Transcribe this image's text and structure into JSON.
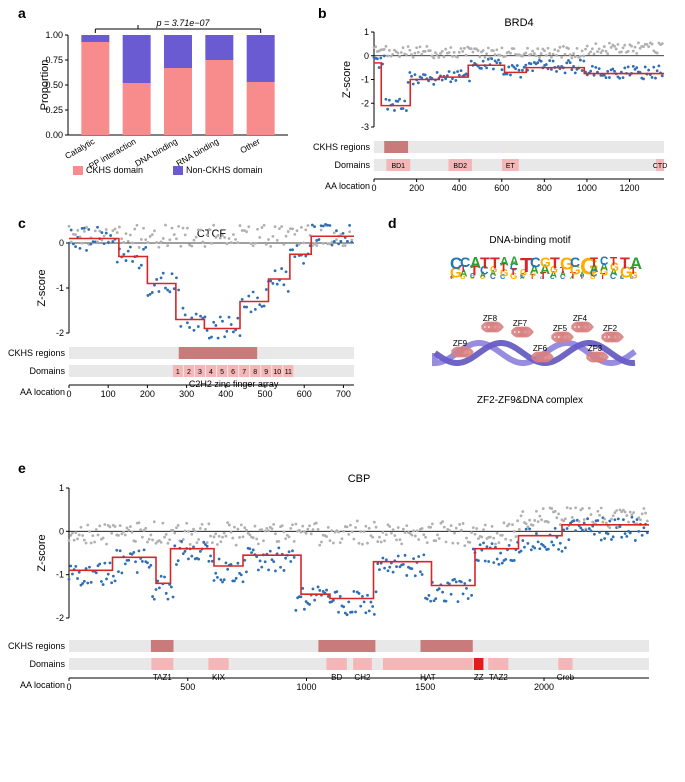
{
  "colors": {
    "ckhs": "#f88c8c",
    "nonckhs": "#6b5bd3",
    "scatter_blue": "#2d6fb5",
    "scatter_grey": "#b0b0b0",
    "step_line": "#d62728",
    "track_bg": "#e8e8e8",
    "ckhs_region": "#c97a7a",
    "domain_box": "#f4b6b6",
    "domain_highlight": "#e41a1c",
    "axis": "#000000",
    "zero": "#000000"
  },
  "panel_a": {
    "label": "a",
    "ylabel": "Proportion",
    "categories": [
      "Catalytic",
      "PP interaction",
      "DNA binding",
      "RNA binding",
      "Other"
    ],
    "ckhs": [
      0.93,
      0.52,
      0.67,
      0.75,
      0.53
    ],
    "nonckhs": [
      0.07,
      0.48,
      0.33,
      0.25,
      0.47
    ],
    "yticks": [
      0.0,
      0.25,
      0.5,
      0.75,
      1.0
    ],
    "ytick_labels": [
      "0.00",
      "0.25",
      "0.50",
      "0.75",
      "1.00"
    ],
    "p_text": "p = 3.71e−07",
    "legend": {
      "ckhs": "CKHS domain",
      "nonckhs": "Non-CKHS domain"
    }
  },
  "panel_b": {
    "label": "b",
    "title": "BRD4",
    "ylabel": "Z-score",
    "yticks": [
      -3,
      -2,
      -1,
      0,
      1
    ],
    "xmax": 1362,
    "xticks": [
      0,
      200,
      400,
      600,
      800,
      1000,
      1200
    ],
    "ckhs_regions": [
      [
        48,
        160
      ]
    ],
    "domains": [
      {
        "name": "BD1",
        "start": 58,
        "end": 170
      },
      {
        "name": "BD2",
        "start": 350,
        "end": 460
      },
      {
        "name": "ET",
        "start": 601,
        "end": 680
      },
      {
        "name": "CTD",
        "start": 1325,
        "end": 1362
      }
    ],
    "tracks": {
      "ckhs": "CKHS regions",
      "domains": "Domains",
      "aa": "AA location"
    }
  },
  "panel_c": {
    "label": "c",
    "title": "CTCF",
    "ylabel": "Z-score",
    "yticks": [
      -2,
      -1,
      0
    ],
    "xmax": 727,
    "xticks": [
      0,
      100,
      200,
      300,
      400,
      500,
      600,
      700
    ],
    "ckhs_regions": [
      [
        280,
        480
      ]
    ],
    "zf_label": "C2H2 zinc finger array",
    "zf_count": 11,
    "zf_start": 265,
    "zf_end": 575,
    "tracks": {
      "ckhs": "CKHS regions",
      "domains": "Domains",
      "aa": "AA location"
    }
  },
  "panel_d": {
    "label": "d",
    "title_top": "DNA-binding motif",
    "title_bottom": "ZF2-ZF9&DNA complex",
    "zf_labels": [
      "ZF2",
      "ZF3",
      "ZF4",
      "ZF5",
      "ZF6",
      "ZF7",
      "ZF8",
      "ZF9"
    ]
  },
  "panel_e": {
    "label": "e",
    "title": "CBP",
    "ylabel": "Z-score",
    "yticks": [
      -2,
      -1,
      0,
      1
    ],
    "xmax": 2442,
    "xticks": [
      0,
      500,
      1000,
      1500,
      2000
    ],
    "ckhs_regions": [
      [
        345,
        440
      ],
      [
        1050,
        1290
      ],
      [
        1480,
        1700
      ]
    ],
    "domains": [
      {
        "name": "TAZ1",
        "start": 347,
        "end": 439,
        "hl": false
      },
      {
        "name": "KIX",
        "start": 587,
        "end": 672,
        "hl": false
      },
      {
        "name": "BD",
        "start": 1084,
        "end": 1170,
        "hl": false
      },
      {
        "name": "CH2",
        "start": 1196,
        "end": 1275,
        "hl": false
      },
      {
        "name": "HAT",
        "start": 1322,
        "end": 1700,
        "hl": false
      },
      {
        "name": "ZZ",
        "start": 1705,
        "end": 1745,
        "hl": true
      },
      {
        "name": "TAZ2",
        "start": 1765,
        "end": 1850,
        "hl": false
      },
      {
        "name": "Creb",
        "start": 2060,
        "end": 2120,
        "hl": false
      }
    ],
    "tracks": {
      "ckhs": "CKHS regions",
      "domains": "Domains",
      "aa": "AA location"
    }
  }
}
